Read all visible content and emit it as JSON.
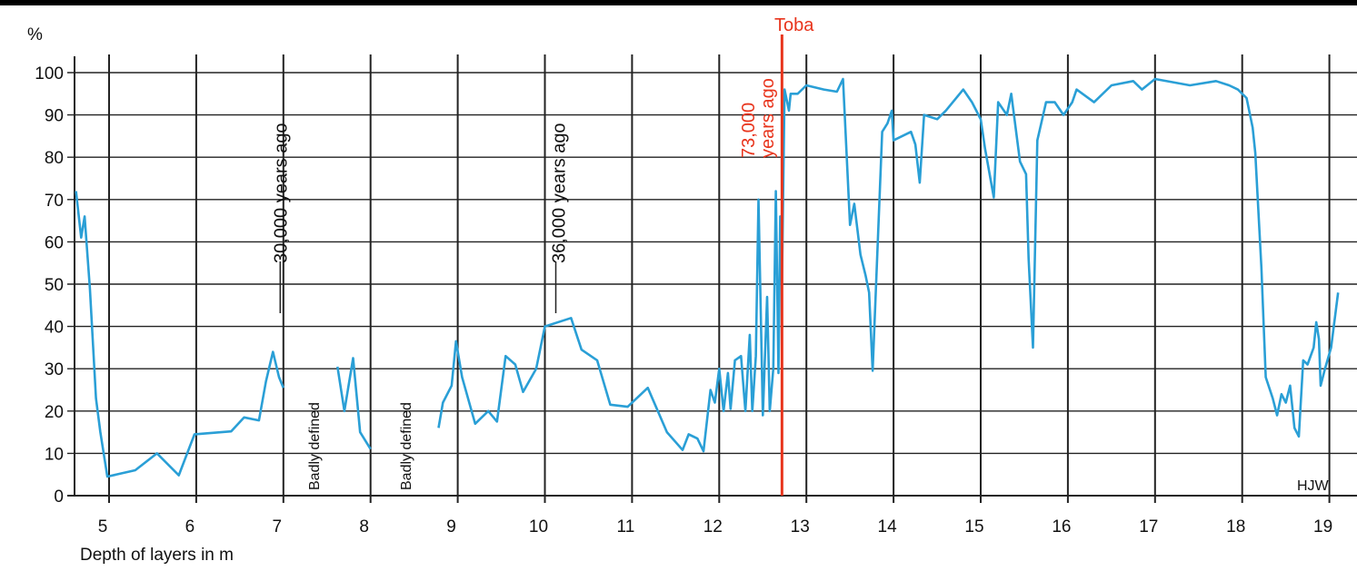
{
  "chart_data": {
    "type": "line",
    "ylabel": "%",
    "xlabel": "Depth of layers in m",
    "xlim": [
      4.6,
      19.1
    ],
    "ylim": [
      0,
      100
    ],
    "x_ticks": [
      "5",
      "6",
      "7",
      "8",
      "9",
      "10",
      "11",
      "12",
      "13",
      "14",
      "15",
      "16",
      "17",
      "18",
      "19"
    ],
    "y_ticks": [
      "0",
      "10",
      "20",
      "30",
      "40",
      "50",
      "60",
      "70",
      "80",
      "90",
      "100"
    ],
    "grid": true,
    "series": [
      {
        "color": "#2a9fd6",
        "segments": [
          [
            [
              4.62,
              72
            ],
            [
              4.68,
              61
            ],
            [
              4.72,
              66
            ],
            [
              4.78,
              49
            ],
            [
              4.85,
              23
            ],
            [
              4.9,
              15
            ],
            [
              4.98,
              4.5
            ],
            [
              5.3,
              6
            ],
            [
              5.55,
              10
            ],
            [
              5.8,
              4.8
            ],
            [
              5.98,
              14.5
            ],
            [
              6.4,
              15.2
            ],
            [
              6.55,
              18.5
            ],
            [
              6.72,
              17.8
            ],
            [
              6.8,
              27
            ],
            [
              6.88,
              34
            ],
            [
              6.95,
              28
            ],
            [
              7.0,
              25.5
            ]
          ],
          [
            [
              7.62,
              30.5
            ],
            [
              7.7,
              20
            ],
            [
              7.8,
              32.5
            ],
            [
              7.88,
              15
            ],
            [
              8.0,
              11
            ]
          ],
          [
            [
              8.78,
              16
            ],
            [
              8.83,
              22
            ],
            [
              8.93,
              26
            ],
            [
              8.98,
              36.5
            ],
            [
              9.05,
              28
            ],
            [
              9.2,
              17
            ],
            [
              9.35,
              20
            ],
            [
              9.45,
              17.5
            ],
            [
              9.55,
              33
            ],
            [
              9.66,
              31
            ],
            [
              9.75,
              24.5
            ],
            [
              9.9,
              30
            ],
            [
              10.0,
              40
            ],
            [
              10.3,
              42
            ],
            [
              10.42,
              34.5
            ],
            [
              10.6,
              32
            ],
            [
              10.75,
              21.5
            ],
            [
              10.95,
              21
            ],
            [
              11.18,
              25.5
            ],
            [
              11.4,
              15
            ],
            [
              11.58,
              10.8
            ],
            [
              11.65,
              14.5
            ],
            [
              11.75,
              13.5
            ],
            [
              11.82,
              10.5
            ],
            [
              11.9,
              25
            ],
            [
              11.95,
              22
            ],
            [
              12.0,
              30
            ],
            [
              12.05,
              20
            ],
            [
              12.1,
              29
            ],
            [
              12.13,
              20.5
            ],
            [
              12.18,
              32
            ],
            [
              12.25,
              33
            ],
            [
              12.3,
              20
            ],
            [
              12.35,
              38
            ],
            [
              12.38,
              20
            ],
            [
              12.42,
              33
            ],
            [
              12.45,
              70
            ],
            [
              12.5,
              19
            ],
            [
              12.55,
              47
            ],
            [
              12.58,
              20
            ],
            [
              12.62,
              30
            ],
            [
              12.65,
              72
            ],
            [
              12.68,
              29
            ],
            [
              12.7,
              66
            ],
            [
              12.72,
              50
            ],
            [
              12.75,
              96
            ],
            [
              12.8,
              91
            ],
            [
              12.82,
              95
            ],
            [
              12.9,
              95
            ],
            [
              13.0,
              97
            ],
            [
              13.2,
              96
            ],
            [
              13.35,
              95.5
            ],
            [
              13.42,
              98.5
            ],
            [
              13.5,
              64
            ],
            [
              13.55,
              69
            ],
            [
              13.62,
              57
            ],
            [
              13.68,
              52
            ],
            [
              13.72,
              48
            ],
            [
              13.76,
              29.5
            ],
            [
              13.8,
              50
            ],
            [
              13.87,
              86
            ],
            [
              13.93,
              88
            ],
            [
              13.98,
              91
            ],
            [
              14.0,
              84
            ],
            [
              14.2,
              86
            ],
            [
              14.25,
              83
            ],
            [
              14.3,
              74
            ],
            [
              14.35,
              90
            ],
            [
              14.5,
              89
            ],
            [
              14.6,
              91
            ],
            [
              14.8,
              96
            ],
            [
              14.9,
              93
            ],
            [
              15.0,
              89
            ],
            [
              15.05,
              82
            ],
            [
              15.15,
              70.5
            ],
            [
              15.2,
              93
            ],
            [
              15.3,
              90
            ],
            [
              15.35,
              95
            ],
            [
              15.45,
              79
            ],
            [
              15.52,
              76
            ],
            [
              15.55,
              56
            ],
            [
              15.6,
              35
            ],
            [
              15.65,
              84
            ],
            [
              15.75,
              93
            ],
            [
              15.85,
              93
            ],
            [
              15.95,
              90
            ],
            [
              16.05,
              93
            ],
            [
              16.1,
              96
            ],
            [
              16.3,
              93
            ],
            [
              16.5,
              97
            ],
            [
              16.75,
              98
            ],
            [
              16.85,
              96
            ],
            [
              17.0,
              98.5
            ],
            [
              17.4,
              97
            ],
            [
              17.7,
              98
            ],
            [
              17.85,
              97
            ],
            [
              17.95,
              96
            ],
            [
              18.05,
              94
            ],
            [
              18.12,
              87
            ],
            [
              18.15,
              81
            ],
            [
              18.22,
              54
            ],
            [
              18.27,
              28
            ],
            [
              18.35,
              23
            ],
            [
              18.4,
              19
            ],
            [
              18.45,
              24
            ],
            [
              18.5,
              22
            ],
            [
              18.55,
              26
            ],
            [
              18.6,
              16
            ],
            [
              18.65,
              14
            ],
            [
              18.7,
              32
            ],
            [
              18.75,
              31
            ],
            [
              18.82,
              35
            ],
            [
              18.85,
              41
            ],
            [
              18.88,
              37
            ],
            [
              18.9,
              26
            ],
            [
              18.95,
              30
            ],
            [
              19.02,
              35
            ],
            [
              19.1,
              48
            ]
          ]
        ]
      }
    ],
    "reference_line": {
      "label": "Toba",
      "x": 12.72,
      "color": "#e8341c"
    },
    "annotations": {
      "marker_30k": {
        "text": "30,000 years ago",
        "x": 6.88
      },
      "marker_36k": {
        "text": "36,000 years ago",
        "x": 10.0
      },
      "marker_73k_line1": "73,000",
      "marker_73k_line2": "years ago",
      "badly_defined_1": "Badly defined",
      "badly_defined_2": "Badly defined",
      "credit": "HJW"
    }
  }
}
